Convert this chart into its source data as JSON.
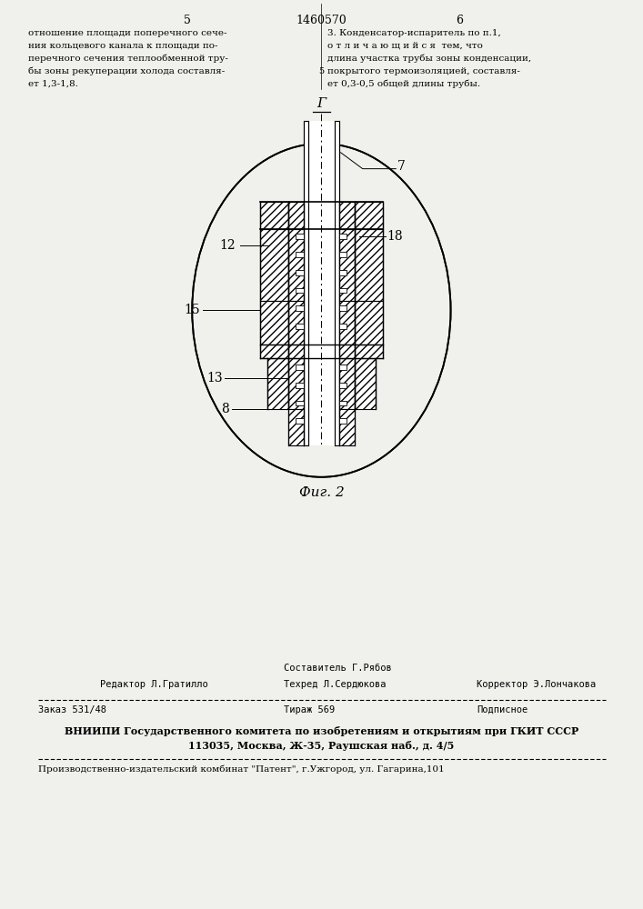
{
  "bg_color": "#f0f0ec",
  "page_width": 7.07,
  "page_height": 10.0,
  "header_page_left": "5",
  "header_patent_num": "1460570",
  "header_page_right": "6",
  "left_text_lines": [
    "отношение площади поперечного сече-",
    "ния кольцевого канала к площади по-",
    "перечного сечения теплообменной тру-",
    "бы зоны рекуперации холода составля-",
    "ет 1,3-1,8."
  ],
  "right_text_lines": [
    "3. Конденсатор-испаритель по п.1,",
    "о т л и ч а ю щ и й с я  тем, что",
    "длина участка трубы зоны конденсации,",
    "покрытого термоизоляцией, составля-",
    "ет 0,3-0,5 общей длины трубы."
  ],
  "fig_caption": "Фиг. 2",
  "footer_line1_left": "Редактор Л.Гратилло",
  "footer_line1_center_top": "Составитель Г.Рябов",
  "footer_line1_center": "Техред Л.Сердюкова",
  "footer_line1_right": "Корректор Э.Лончакова",
  "footer_line2_left": "Заказ 531/48",
  "footer_line2_center": "Тираж 569",
  "footer_line2_right": "Подписное",
  "footer_line3": "ВНИИПИ Государственного комитета по изобретениям и открытиям при ГКИТ СССР",
  "footer_line4": "113035, Москва, Ж-35, Раушская наб., д. 4/5",
  "footer_line5": "Производственно-издательский комбинат \"Патент\", г.Ужгород, ул. Гагарина,101"
}
